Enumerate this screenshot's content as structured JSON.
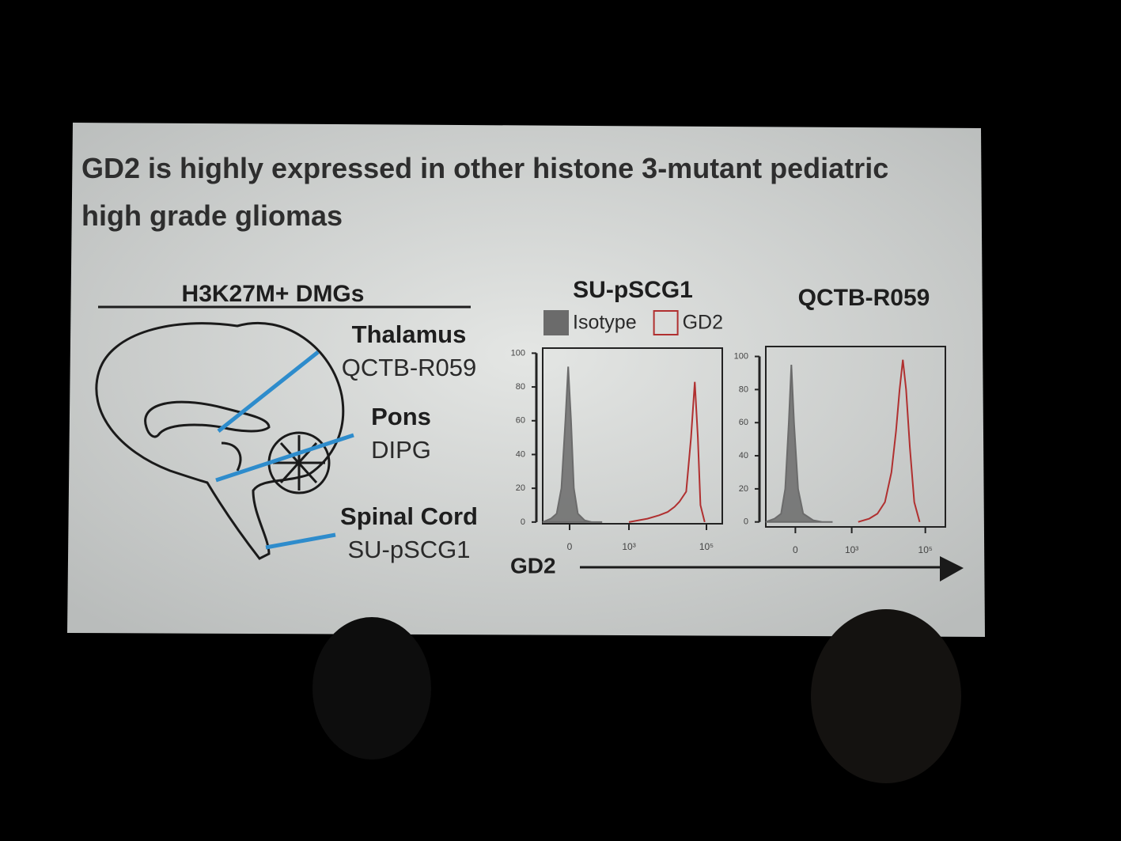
{
  "slide": {
    "title": "GD2 is highly expressed in other histone 3-mutant pediatric high grade gliomas",
    "diagram_heading": "H3K27M+ DMGs",
    "regions": [
      {
        "region": "Thalamus",
        "model": "QCTB-R059"
      },
      {
        "region": "Pons",
        "model": "DIPG"
      },
      {
        "region": "Spinal Cord",
        "model": "SU-pSCG1"
      }
    ]
  },
  "chart_data": [
    {
      "type": "histogram-overlay",
      "title": "SU-pSCG1",
      "xlabel": "GD2",
      "xscale": "biexponential",
      "xlim": [
        -140,
        256000
      ],
      "ylim": [
        -1,
        103
      ],
      "xticks": [
        {
          "value": 0,
          "label": "0"
        },
        {
          "value": 1000,
          "label": "10³"
        },
        {
          "value": 100000,
          "label": "10⁵"
        }
      ],
      "yticks": [
        0,
        20,
        40,
        60,
        80,
        100
      ],
      "series": [
        {
          "name": "Isotype",
          "color": "#6b6b6b",
          "fill": true,
          "x": [
            -140,
            -80,
            -50,
            -30,
            -15,
            -5,
            5,
            15,
            30,
            60,
            100,
            200
          ],
          "values": [
            0,
            2,
            5,
            20,
            60,
            92,
            60,
            20,
            5,
            1,
            0,
            0
          ]
        },
        {
          "name": "GD2",
          "color": "#b03030",
          "fill": false,
          "x": [
            1000,
            3000,
            6000,
            10000,
            15000,
            20000,
            30000,
            40000,
            50000,
            60000,
            70000,
            90000
          ],
          "values": [
            0,
            2,
            4,
            6,
            9,
            12,
            18,
            50,
            83,
            50,
            10,
            0
          ]
        }
      ]
    },
    {
      "type": "histogram-overlay",
      "title": "QCTB-R059",
      "xscale": "biexponential",
      "xlim": [
        -183,
        350000
      ],
      "ylim": [
        -3,
        106
      ],
      "xticks": [
        {
          "value": 0,
          "label": "0"
        },
        {
          "value": 1000,
          "label": "10³"
        },
        {
          "value": 100000,
          "label": "10⁵"
        }
      ],
      "yticks": [
        0,
        20,
        40,
        60,
        80,
        100
      ],
      "series": [
        {
          "color": "#6b6b6b",
          "fill": true,
          "x": [
            -183,
            -100,
            -60,
            -40,
            -25,
            -15,
            -5,
            10,
            30,
            80,
            150,
            300
          ],
          "values": [
            0,
            2,
            5,
            20,
            60,
            95,
            60,
            20,
            5,
            1,
            0,
            0
          ]
        },
        {
          "color": "#b03030",
          "fill": false,
          "x": [
            1500,
            3000,
            5000,
            8000,
            12000,
            16000,
            20000,
            24500,
            30000,
            38000,
            50000,
            70000
          ],
          "values": [
            0,
            2,
            5,
            12,
            30,
            55,
            80,
            98,
            80,
            45,
            12,
            0
          ]
        }
      ]
    }
  ]
}
